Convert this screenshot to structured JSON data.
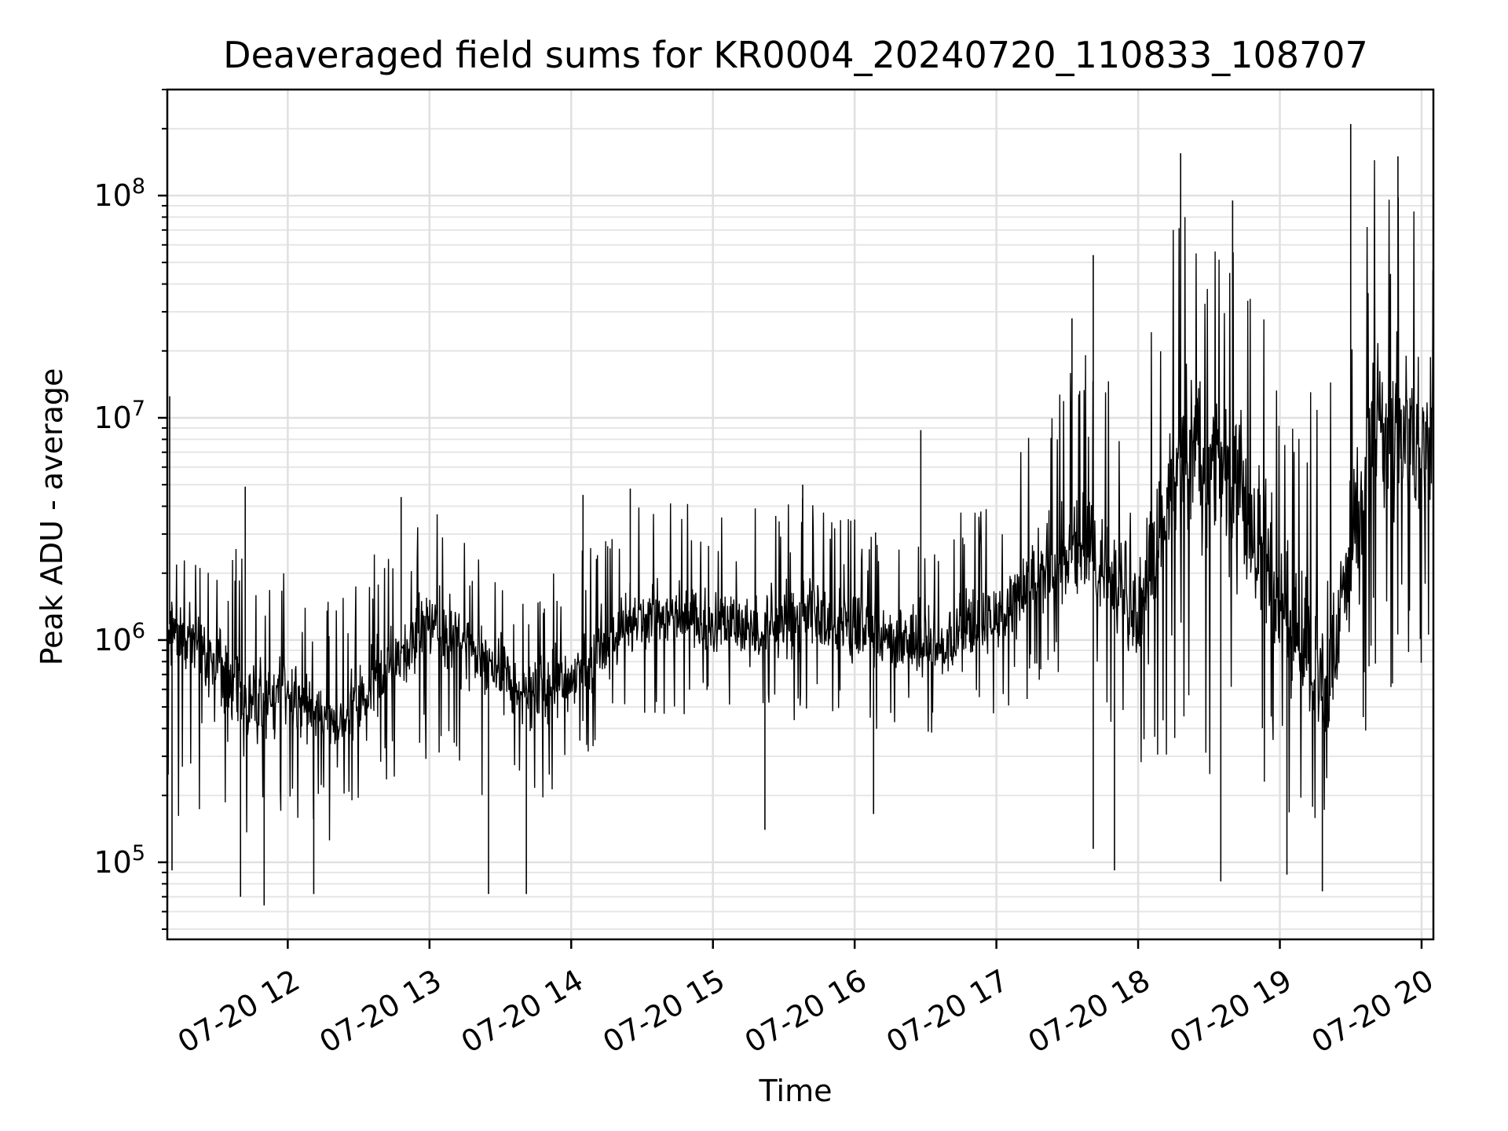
{
  "chart_data": {
    "type": "line",
    "title": "Deaveraged field sums for KR0004_20240720_110833_108707",
    "xlabel": "Time",
    "ylabel": "Peak ADU - average",
    "yscale": "log",
    "grid": true,
    "legend": "none",
    "xlim": [
      "2024-07-20T11:09",
      "2024-07-20T20:05"
    ],
    "ylim": [
      45000,
      300000000
    ],
    "x_tick_labels": [
      "07-20 12",
      "07-20 13",
      "07-20 14",
      "07-20 15",
      "07-20 16",
      "07-20 17",
      "07-20 18",
      "07-20 19",
      "07-20 20"
    ],
    "y_tick_labels": [
      {
        "value": 100000,
        "label": "10^5"
      },
      {
        "value": 1000000,
        "label": "10^6"
      },
      {
        "value": 10000000,
        "label": "10^7"
      },
      {
        "value": 100000000,
        "label": "10^8"
      }
    ],
    "series": [
      {
        "color": "#000000",
        "x": [
          "2024-07-20T11:09",
          "2024-07-20T11:30",
          "2024-07-20T11:45",
          "2024-07-20T12:00",
          "2024-07-20T12:20",
          "2024-07-20T12:40",
          "2024-07-20T13:00",
          "2024-07-20T13:20",
          "2024-07-20T13:40",
          "2024-07-20T14:00",
          "2024-07-20T14:20",
          "2024-07-20T14:40",
          "2024-07-20T15:00",
          "2024-07-20T15:20",
          "2024-07-20T15:40",
          "2024-07-20T16:00",
          "2024-07-20T16:20",
          "2024-07-20T16:40",
          "2024-07-20T17:00",
          "2024-07-20T17:20",
          "2024-07-20T17:40",
          "2024-07-20T18:00",
          "2024-07-20T18:20",
          "2024-07-20T18:40",
          "2024-07-20T19:00",
          "2024-07-20T19:20",
          "2024-07-20T19:40",
          "2024-07-20T20:05"
        ],
        "y": [
          1200000,
          800000,
          500000,
          600000,
          400000,
          700000,
          1200000,
          900000,
          550000,
          650000,
          1100000,
          1300000,
          1150000,
          1050000,
          1300000,
          1100000,
          950000,
          900000,
          1200000,
          2000000,
          2500000,
          1200000,
          8000000,
          5000000,
          1500000,
          500000,
          10000000,
          8000000
        ],
        "lower": [
          150000,
          100000,
          90000,
          150000,
          120000,
          200000,
          300000,
          200000,
          150000,
          250000,
          400000,
          450000,
          450000,
          400000,
          450000,
          400000,
          350000,
          400000,
          450000,
          600000,
          700000,
          200000,
          400000,
          150000,
          150000,
          150000,
          400000,
          800000
        ],
        "upper": [
          4000000,
          3000000,
          2500000,
          2000000,
          1500000,
          3000000,
          4000000,
          2500000,
          1800000,
          2500000,
          4000000,
          4200000,
          4000000,
          4000000,
          4500000,
          3500000,
          3200000,
          4000000,
          5000000,
          12000000,
          22000000,
          15000000,
          120000000,
          80000000,
          20000000,
          15000000,
          150000000,
          120000000
        ],
        "spikes_high": [
          {
            "x": "2024-07-20T11:10",
            "y": 12500000
          },
          {
            "x": "2024-07-20T11:42",
            "y": 4900000
          },
          {
            "x": "2024-07-20T12:48",
            "y": 4400000
          },
          {
            "x": "2024-07-20T14:05",
            "y": 4500000
          },
          {
            "x": "2024-07-20T14:25",
            "y": 4800000
          },
          {
            "x": "2024-07-20T15:38",
            "y": 5000000
          },
          {
            "x": "2024-07-20T16:28",
            "y": 8800000
          },
          {
            "x": "2024-07-20T17:32",
            "y": 28000000
          },
          {
            "x": "2024-07-20T17:41",
            "y": 54000000
          },
          {
            "x": "2024-07-20T18:18",
            "y": 155000000
          },
          {
            "x": "2024-07-20T18:40",
            "y": 95000000
          },
          {
            "x": "2024-07-20T19:30",
            "y": 210000000
          },
          {
            "x": "2024-07-20T19:50",
            "y": 150000000
          }
        ],
        "spikes_low": [
          {
            "x": "2024-07-20T11:11",
            "y": 92000
          },
          {
            "x": "2024-07-20T11:40",
            "y": 70000
          },
          {
            "x": "2024-07-20T11:50",
            "y": 64000
          },
          {
            "x": "2024-07-20T12:11",
            "y": 72000
          },
          {
            "x": "2024-07-20T13:25",
            "y": 72000
          },
          {
            "x": "2024-07-20T13:41",
            "y": 72000
          },
          {
            "x": "2024-07-20T15:22",
            "y": 140000
          },
          {
            "x": "2024-07-20T16:08",
            "y": 165000
          },
          {
            "x": "2024-07-20T17:41",
            "y": 115000
          },
          {
            "x": "2024-07-20T17:50",
            "y": 92000
          },
          {
            "x": "2024-07-20T18:35",
            "y": 82000
          },
          {
            "x": "2024-07-20T19:03",
            "y": 88000
          },
          {
            "x": "2024-07-20T19:18",
            "y": 74000
          }
        ]
      }
    ]
  }
}
